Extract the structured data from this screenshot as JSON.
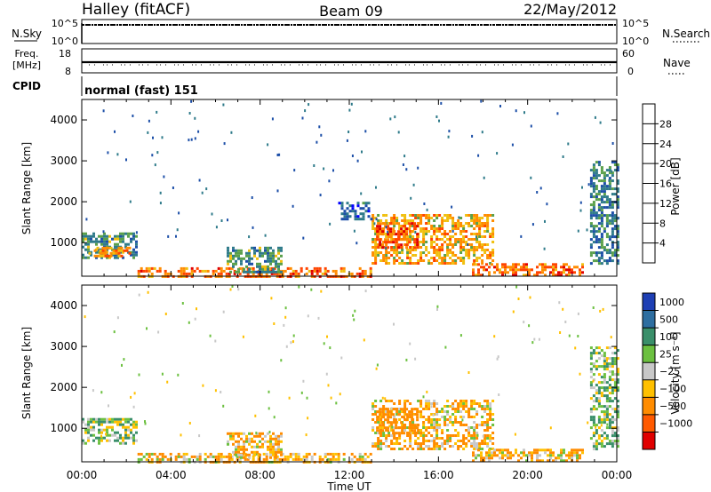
{
  "header": {
    "station": "Halley (fitACF)",
    "beam": "Beam 09",
    "date": "22/May/2012"
  },
  "strips": {
    "nsky_label": "N.Sky",
    "nsearch_label": "N.Search",
    "freq_label_1": "Freq.",
    "freq_label_2": "[MHz]",
    "nave_label": "Nave",
    "cpid_label": "CPID",
    "nsky_ticks": [
      "10^5",
      "10^0"
    ],
    "nsearch_ticks": [
      "10^5",
      "10^0"
    ],
    "freq_ticks": [
      "18",
      "8"
    ],
    "nave_ticks": [
      "60",
      "0"
    ],
    "cpid_value": "normal (fast) 151"
  },
  "colorbars": {
    "power": {
      "label": "Power [dB]",
      "ticks": [
        "4",
        "8",
        "12",
        "16",
        "20",
        "24",
        "28"
      ],
      "colors": [
        "#0000ff",
        "#1d4fa8",
        "#2f7b8a",
        "#5aa04a",
        "#f0c010",
        "#ff8c00",
        "#ff4400",
        "#e00000"
      ]
    },
    "velocity": {
      "label": "Velocity [m s⁻¹]",
      "ticks": [
        "1000",
        "500",
        "100",
        "25",
        "−25",
        "−100",
        "−500",
        "−1000"
      ],
      "colors": [
        "#1e3fb4",
        "#2e6ea0",
        "#3a8f6a",
        "#6cc040",
        "#c8c8c8",
        "#ffc000",
        "#ff8c00",
        "#ff5a00",
        "#e00000"
      ]
    }
  },
  "chart_data": [
    {
      "type": "heatmap",
      "title": "Power",
      "ylabel": "Slant Range [km]",
      "xlim": [
        "00:00",
        "24:00"
      ],
      "ylim": [
        180,
        4500
      ],
      "yticks": [
        1000,
        2000,
        3000,
        4000
      ],
      "colorbar": "Power [dB]",
      "clim": [
        0,
        30
      ],
      "blocks": [
        {
          "t0": 0.0,
          "t1": 2.5,
          "r0": 650,
          "r1": 1250,
          "value": 12
        },
        {
          "t0": 0.3,
          "t1": 2.2,
          "r0": 650,
          "r1": 900,
          "value": 22
        },
        {
          "t0": 2.5,
          "t1": 13.0,
          "r0": 200,
          "r1": 400,
          "value": 24
        },
        {
          "t0": 6.5,
          "t1": 9.0,
          "r0": 300,
          "r1": 900,
          "value": 12
        },
        {
          "t0": 13.0,
          "t1": 18.5,
          "r0": 500,
          "r1": 1700,
          "value": 20
        },
        {
          "t0": 13.2,
          "t1": 15.0,
          "r0": 900,
          "r1": 1500,
          "value": 26
        },
        {
          "t0": 17.5,
          "t1": 22.5,
          "r0": 200,
          "r1": 500,
          "value": 24
        },
        {
          "t0": 11.5,
          "t1": 13.0,
          "r0": 1600,
          "r1": 2000,
          "value": 8
        },
        {
          "t0": 22.8,
          "t1": 24.0,
          "r0": 500,
          "r1": 3000,
          "value": 10
        }
      ]
    },
    {
      "type": "heatmap",
      "title": "Velocity",
      "ylabel": "Slant Range [km]",
      "xlim": [
        "00:00",
        "24:00"
      ],
      "ylim": [
        180,
        4500
      ],
      "yticks": [
        1000,
        2000,
        3000,
        4000
      ],
      "xticks": [
        "00:00",
        "04:00",
        "08:00",
        "12:00",
        "16:00",
        "20:00",
        "00:00"
      ],
      "xlabel": "Time UT",
      "colorbar": "Velocity [m s⁻¹]",
      "clim": [
        -1000,
        1000
      ],
      "blocks": [
        {
          "t0": 0.0,
          "t1": 2.5,
          "r0": 650,
          "r1": 1250,
          "value": 60
        },
        {
          "t0": 2.5,
          "t1": 13.0,
          "r0": 200,
          "r1": 400,
          "value": -80
        },
        {
          "t0": 6.5,
          "t1": 9.0,
          "r0": 300,
          "r1": 900,
          "value": -80
        },
        {
          "t0": 13.0,
          "t1": 18.5,
          "r0": 500,
          "r1": 1700,
          "value": -90
        },
        {
          "t0": 13.2,
          "t1": 15.0,
          "r0": 900,
          "r1": 1500,
          "value": -300
        },
        {
          "t0": 17.5,
          "t1": 22.5,
          "r0": 200,
          "r1": 500,
          "value": -90
        },
        {
          "t0": 22.8,
          "t1": 24.0,
          "r0": 500,
          "r1": 3000,
          "value": 60
        }
      ]
    }
  ]
}
